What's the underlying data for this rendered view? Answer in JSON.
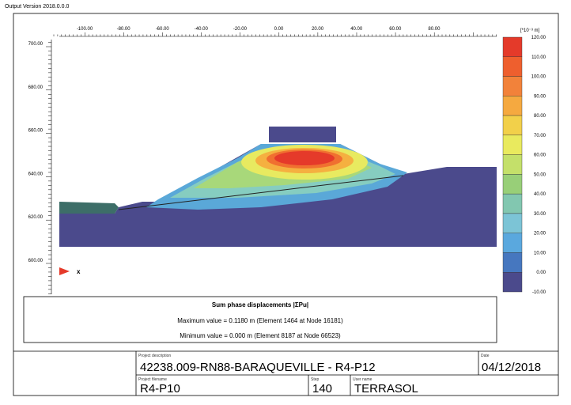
{
  "header": {
    "version": "Output Version 2018.0.0.0"
  },
  "plot": {
    "x_ticks": [
      "-100.00",
      "-80.00",
      "-60.00",
      "-40.00",
      "-20.00",
      "0.00",
      "20.00",
      "40.00",
      "60.00",
      "80.00"
    ],
    "y_ticks": [
      "700.00",
      "680.00",
      "660.00",
      "640.00",
      "620.00",
      "600.00"
    ],
    "axis_label": "x",
    "colorbar_unit": "[*10⁻³ m]",
    "colorbar_labels": [
      "120.00",
      "110.00",
      "100.00",
      "90.00",
      "80.00",
      "70.00",
      "60.00",
      "50.00",
      "40.00",
      "30.00",
      "20.00",
      "10.00",
      "0.00",
      "-10.00"
    ]
  },
  "legend": {
    "title": "Sum phase displacements |ΣPu|",
    "max": "Maximum value = 0.1180 m (Element 1464 at Node 16181)",
    "min": "Minimum value = 0.000 m (Element 8187 at Node 66523)"
  },
  "title_block": {
    "project_description_label": "Project description",
    "project_description": "42238.009-RN88-BARAQUEVILLE - R4-P12",
    "date_label": "Date",
    "date": "04/12/2018",
    "filename_label": "Project filename",
    "filename": "R4-P10",
    "step_label": "Step",
    "step": "140",
    "user_label": "User name",
    "user": "TERRASOL"
  }
}
